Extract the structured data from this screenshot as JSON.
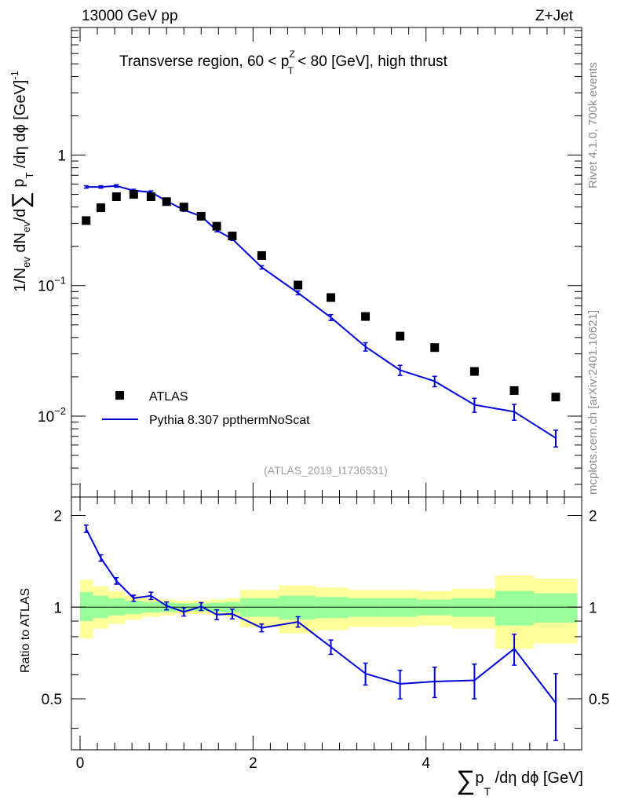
{
  "header": {
    "energy": "13000 GeV pp",
    "process": "Z+Jet"
  },
  "side_labels": {
    "rivet": "Rivet 4.1.0,  700k events",
    "source": "mcplots.cern.ch [arXiv:2401.10621]"
  },
  "chart_data": [
    {
      "type": "scatter",
      "panel": "main",
      "title": {
        "prefix": "Transverse region, 60 < p",
        "sup": "Z",
        "sub": "T",
        "suffix": " < 80 [GeV], high thrust"
      },
      "ylabel": {
        "a": "1/N",
        "a_sub": "ev",
        "b": " dN",
        "b_sub": "ev",
        "c": "/d",
        "sum": "∑",
        "d": " p",
        "d_sub": "T",
        "e": " /dη dϕ  [GeV]",
        "e_sup": "-1"
      },
      "yscale": "log",
      "ylim": [
        0.0024,
        9.5
      ],
      "xlim": [
        -0.1,
        5.8
      ],
      "ytick_labels": [
        {
          "value": 1,
          "base": "1",
          "exp": ""
        },
        {
          "value": 0.1,
          "base": "10",
          "exp": "−1"
        },
        {
          "value": 0.01,
          "base": "10",
          "exp": "−2"
        }
      ],
      "watermark": "(ATLAS_2019_I1736531)",
      "legend": {
        "position": "bottom-left",
        "entries": [
          "ATLAS",
          "Pythia 8.307 ppthermNoScat"
        ]
      },
      "series": [
        {
          "name": "ATLAS",
          "marker": "square",
          "color": "#000000",
          "x": [
            0.07,
            0.24,
            0.42,
            0.62,
            0.82,
            1.0,
            1.2,
            1.4,
            1.58,
            1.76,
            2.1,
            2.52,
            2.9,
            3.3,
            3.7,
            4.1,
            4.56,
            5.02,
            5.5
          ],
          "y": [
            0.315,
            0.395,
            0.48,
            0.5,
            0.48,
            0.44,
            0.4,
            0.34,
            0.285,
            0.24,
            0.17,
            0.101,
            0.081,
            0.058,
            0.041,
            0.0335,
            0.022,
            0.0157,
            0.014
          ]
        },
        {
          "name": "Pythia 8.307 ppthermNoScat",
          "marker": "line",
          "color": "#0000dd",
          "x": [
            0.07,
            0.24,
            0.42,
            0.62,
            0.82,
            1.0,
            1.2,
            1.4,
            1.58,
            1.76,
            2.1,
            2.52,
            2.9,
            3.3,
            3.7,
            4.1,
            4.56,
            5.02,
            5.5
          ],
          "y": [
            0.57,
            0.57,
            0.58,
            0.535,
            0.52,
            0.445,
            0.38,
            0.34,
            0.265,
            0.228,
            0.138,
            0.088,
            0.057,
            0.034,
            0.0225,
            0.0185,
            0.0122,
            0.0108,
            0.0068
          ],
          "yerr": [
            0.012,
            0.012,
            0.013,
            0.012,
            0.012,
            0.01,
            0.009,
            0.008,
            0.007,
            0.006,
            0.004,
            0.003,
            0.003,
            0.0025,
            0.002,
            0.0017,
            0.0015,
            0.0015,
            0.001
          ]
        }
      ]
    },
    {
      "type": "line",
      "panel": "ratio",
      "ylabel": "Ratio to ATLAS",
      "xlabel": {
        "sum": "∑",
        "a": "p",
        "a_sub": "T",
        "b": " /dη dϕ [GeV]"
      },
      "ylim": [
        0.34,
        2.3
      ],
      "xlim": [
        -0.1,
        5.8
      ],
      "xticks": [
        0,
        2,
        4
      ],
      "yticks": [
        0.5,
        1,
        2
      ],
      "bins": [
        [
          0.0,
          0.15
        ],
        [
          0.15,
          0.33
        ],
        [
          0.33,
          0.52
        ],
        [
          0.52,
          0.72
        ],
        [
          0.72,
          0.92
        ],
        [
          0.92,
          1.1
        ],
        [
          1.1,
          1.3
        ],
        [
          1.3,
          1.5
        ],
        [
          1.5,
          1.67
        ],
        [
          1.67,
          1.85
        ],
        [
          1.85,
          2.3
        ],
        [
          2.3,
          2.72
        ],
        [
          2.72,
          3.1
        ],
        [
          3.1,
          3.5
        ],
        [
          3.5,
          3.9
        ],
        [
          3.9,
          4.3
        ],
        [
          4.3,
          4.8
        ],
        [
          4.8,
          5.25
        ],
        [
          5.25,
          5.75
        ]
      ],
      "band_outer": [
        [
          0.79,
          1.23
        ],
        [
          0.85,
          1.17
        ],
        [
          0.88,
          1.13
        ],
        [
          0.91,
          1.09
        ],
        [
          0.93,
          1.07
        ],
        [
          0.94,
          1.06
        ],
        [
          0.95,
          1.05
        ],
        [
          0.95,
          1.05
        ],
        [
          0.94,
          1.06
        ],
        [
          0.93,
          1.07
        ],
        [
          0.86,
          1.14
        ],
        [
          0.82,
          1.18
        ],
        [
          0.84,
          1.16
        ],
        [
          0.86,
          1.14
        ],
        [
          0.86,
          1.14
        ],
        [
          0.87,
          1.13
        ],
        [
          0.85,
          1.15
        ],
        [
          0.73,
          1.27
        ],
        [
          0.76,
          1.24
        ]
      ],
      "band_inner": [
        [
          0.9,
          1.12
        ],
        [
          0.92,
          1.09
        ],
        [
          0.94,
          1.07
        ],
        [
          0.95,
          1.05
        ],
        [
          0.96,
          1.04
        ],
        [
          0.965,
          1.035
        ],
        [
          0.97,
          1.03
        ],
        [
          0.97,
          1.03
        ],
        [
          0.965,
          1.035
        ],
        [
          0.96,
          1.04
        ],
        [
          0.93,
          1.07
        ],
        [
          0.91,
          1.09
        ],
        [
          0.92,
          1.08
        ],
        [
          0.93,
          1.07
        ],
        [
          0.93,
          1.07
        ],
        [
          0.94,
          1.06
        ],
        [
          0.93,
          1.07
        ],
        [
          0.87,
          1.13
        ],
        [
          0.89,
          1.11
        ]
      ],
      "band_colors": {
        "outer": "#ffff99",
        "inner": "#99ff99"
      },
      "series": [
        {
          "name": "Pythia 8.307 ppthermNoScat / ATLAS",
          "color": "#0000dd",
          "x": [
            0.07,
            0.24,
            0.42,
            0.62,
            0.82,
            1.0,
            1.2,
            1.4,
            1.58,
            1.76,
            2.1,
            2.52,
            2.9,
            3.3,
            3.7,
            4.1,
            4.56,
            5.02,
            5.5
          ],
          "y": [
            1.81,
            1.45,
            1.22,
            1.07,
            1.09,
            1.01,
            0.965,
            1.005,
            0.945,
            0.95,
            0.855,
            0.895,
            0.74,
            0.605,
            0.56,
            0.57,
            0.575,
            0.73,
            0.485
          ],
          "yerr": [
            0.05,
            0.035,
            0.03,
            0.025,
            0.03,
            0.03,
            0.03,
            0.03,
            0.035,
            0.035,
            0.025,
            0.035,
            0.04,
            0.05,
            0.06,
            0.065,
            0.075,
            0.085,
            0.12
          ]
        }
      ]
    }
  ]
}
